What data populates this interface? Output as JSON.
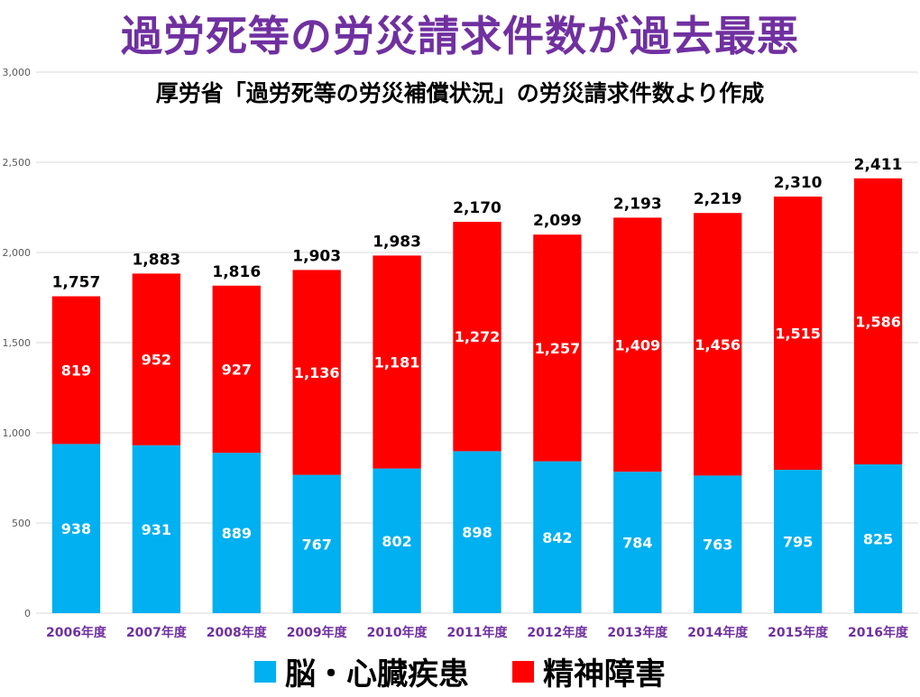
{
  "colors": {
    "title": "#7030a0",
    "series_cardio": "#00b0f0",
    "series_mental": "#ff0000",
    "category_label": "#7030a0",
    "grid": "#d9d9d9"
  },
  "chart_data": {
    "type": "bar",
    "stacked": true,
    "title": "過労死等の労災請求件数が過去最悪",
    "subtitle": "厚労省「過労死等の労災補償状況」の労災請求件数より作成",
    "categories": [
      "2006年度",
      "2007年度",
      "2008年度",
      "2009年度",
      "2010年度",
      "2011年度",
      "2012年度",
      "2013年度",
      "2014年度",
      "2015年度",
      "2016年度"
    ],
    "series": [
      {
        "name": "脳・心臓疾患",
        "values": [
          938,
          931,
          889,
          767,
          802,
          898,
          842,
          784,
          763,
          795,
          825
        ]
      },
      {
        "name": "精神障害",
        "values": [
          819,
          952,
          927,
          1136,
          1181,
          1272,
          1257,
          1409,
          1456,
          1515,
          1586
        ]
      }
    ],
    "totals": [
      1757,
      1883,
      1816,
      1903,
      1983,
      2170,
      2099,
      2193,
      2219,
      2310,
      2411
    ],
    "ylim": [
      0,
      3000
    ],
    "yticks": [
      0,
      500,
      1000,
      1500,
      2000,
      2500,
      3000
    ],
    "grid": true,
    "legend_position": "bottom"
  }
}
